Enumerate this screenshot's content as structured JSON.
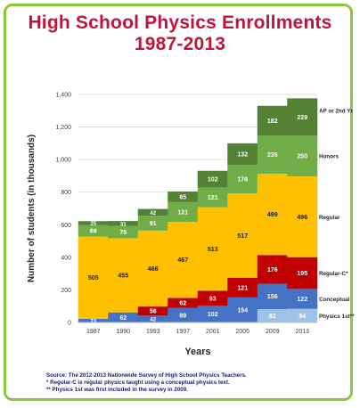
{
  "title_line1": "High School Physics Enrollments",
  "title_line2": "1987-2013",
  "notes": [
    "Source: The 2012-2013 Nationwide Survey of High School Physics Teachers.",
    "* Regular-C is regular physics taught using a conceptual physics text.",
    "** Physics 1st was first included in the survey in 2009."
  ],
  "colors": {
    "title": "#c0143c",
    "frame": "#8cc63f",
    "physics_1st": "#9dc3e6",
    "conceptual": "#4472c4",
    "regular_c": "#c00000",
    "regular": "#ffc000",
    "honors": "#70ad47",
    "ap_2nd_yr": "#548235"
  },
  "chart_data": {
    "type": "bar",
    "stacked": true,
    "categories": [
      "1987",
      "1990",
      "1993",
      "1997",
      "2001",
      "2005",
      "2009",
      "2013"
    ],
    "xlabel": "Years",
    "ylabel": "Number of students (in thousands)",
    "ylim": [
      0,
      1400
    ],
    "yticks": [
      0,
      200,
      400,
      600,
      800,
      1000,
      1200,
      1400
    ],
    "ytick_labels": [
      "0",
      "200",
      "400",
      "600",
      "800",
      "1,000",
      "1,200",
      "1,400"
    ],
    "grid": true,
    "series": [
      {
        "name": "Physics 1st**",
        "color": "#9dc3e6",
        "values": [
          0,
          0,
          0,
          0,
          0,
          0,
          82,
          84
        ]
      },
      {
        "name": "Conceptual",
        "color": "#4472c4",
        "values": [
          23,
          62,
          42,
          89,
          102,
          154,
          156,
          122
        ]
      },
      {
        "name": "Regular-C*",
        "color": "#c00000",
        "values": [
          0,
          0,
          56,
          62,
          93,
          121,
          176,
          195
        ]
      },
      {
        "name": "Regular",
        "color": "#ffc000",
        "values": [
          505,
          455,
          466,
          467,
          513,
          517,
          499,
          496
        ]
      },
      {
        "name": "Honors",
        "color": "#70ad47",
        "values": [
          69,
          75,
          91,
          121,
          121,
          176,
          235,
          250
        ]
      },
      {
        "name": "AP or 2nd Yr",
        "color": "#548235",
        "values": [
          25,
          31,
          42,
          65,
          102,
          132,
          182,
          229
        ]
      }
    ]
  }
}
